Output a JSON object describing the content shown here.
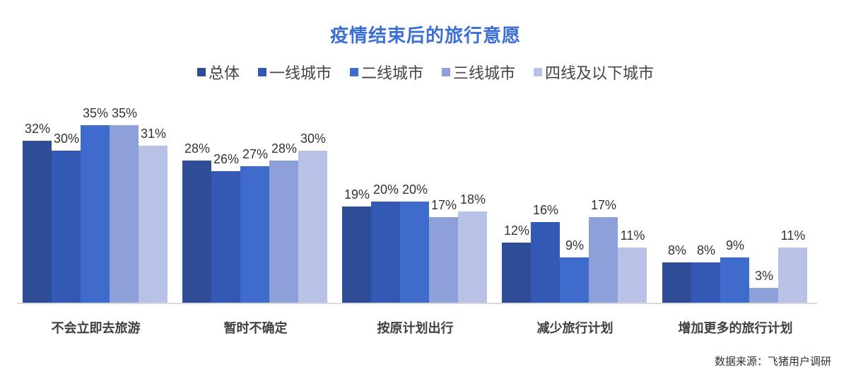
{
  "title": "疫情结束后的旅行意愿",
  "source": "数据来源：飞猪用户调研",
  "legend": [
    {
      "label": "总体",
      "color": "#2e4d96"
    },
    {
      "label": "一线城市",
      "color": "#3459b4"
    },
    {
      "label": "二线城市",
      "color": "#3f6bcc"
    },
    {
      "label": "三线城市",
      "color": "#8da0da"
    },
    {
      "label": "四线及以下城市",
      "color": "#b8c1e6"
    }
  ],
  "chart_data": {
    "type": "bar",
    "title": "疫情结束后的旅行意愿",
    "xlabel": "",
    "ylabel": "",
    "ylim": [
      0,
      40
    ],
    "grid": false,
    "legend_position": "top",
    "categories": [
      "不会立即去旅游",
      "暂时不确定",
      "按原计划出行",
      "减少旅行计划",
      "增加更多的旅行计划"
    ],
    "series": [
      {
        "name": "总体",
        "color": "#2e4d96",
        "values": [
          32,
          28,
          19,
          12,
          8
        ]
      },
      {
        "name": "一线城市",
        "color": "#3459b4",
        "values": [
          30,
          26,
          20,
          16,
          8
        ]
      },
      {
        "name": "二线城市",
        "color": "#3f6bcc",
        "values": [
          35,
          27,
          20,
          9,
          9
        ]
      },
      {
        "name": "三线城市",
        "color": "#8da0da",
        "values": [
          35,
          28,
          17,
          17,
          3
        ]
      },
      {
        "name": "四线及以下城市",
        "color": "#b8c1e6",
        "values": [
          31,
          30,
          18,
          11,
          11
        ]
      }
    ],
    "annotations": [
      "数据来源：飞猪用户调研"
    ]
  }
}
